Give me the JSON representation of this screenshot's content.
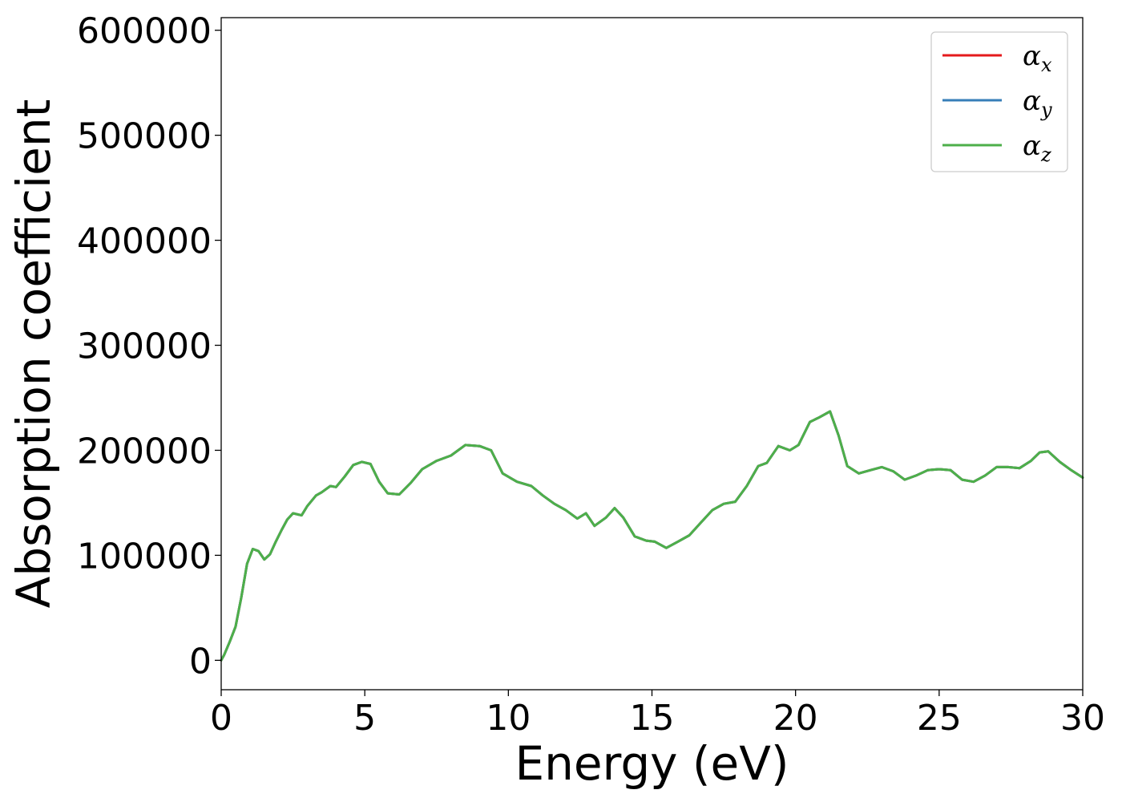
{
  "chart_data": {
    "type": "line",
    "title": "",
    "xlabel": "Energy (eV)",
    "ylabel": "Absorption coefficient",
    "xlim": [
      0,
      30
    ],
    "ylim": [
      -28000,
      612000
    ],
    "xticks": [
      0,
      5,
      10,
      15,
      20,
      25,
      30
    ],
    "yticks": [
      0,
      100000,
      200000,
      300000,
      400000,
      500000,
      600000
    ],
    "grid": false,
    "legend_position": "top-right",
    "series": [
      {
        "name": "α",
        "subscript": "x",
        "color": "#e41a1c",
        "x": [
          0,
          0.1,
          0.3,
          0.5,
          0.7,
          0.9,
          1.1,
          1.3,
          1.5,
          1.7,
          1.9,
          2.1,
          2.3,
          2.5,
          2.8,
          3.0,
          3.3,
          3.5,
          3.8,
          4.0,
          4.3,
          4.6,
          4.9,
          5.2,
          5.5,
          5.8,
          6.2,
          6.6,
          7.0,
          7.5,
          8.0,
          8.5,
          9.0,
          9.4,
          9.8,
          10.3,
          10.8,
          11.2,
          11.6,
          12.0,
          12.4,
          12.7,
          13.0,
          13.4,
          13.7,
          14.0,
          14.4,
          14.8,
          15.1,
          15.5,
          15.9,
          16.3,
          16.7,
          17.1,
          17.5,
          17.9,
          18.3,
          18.7,
          19.0,
          19.4,
          19.8,
          20.1,
          20.5,
          20.8,
          21.2,
          21.5,
          21.8,
          22.2,
          22.6,
          23.0,
          23.4,
          23.8,
          24.2,
          24.6,
          25.0,
          25.4,
          25.8,
          26.2,
          26.6,
          27.0,
          27.4,
          27.8,
          28.2,
          28.5,
          28.8,
          29.2,
          29.6,
          30.0
        ],
        "y": [
          0,
          5000,
          18000,
          32000,
          60000,
          92000,
          106000,
          104000,
          96000,
          101000,
          113000,
          124000,
          134000,
          140000,
          138000,
          147000,
          157000,
          160000,
          166000,
          165000,
          175000,
          186000,
          189000,
          187000,
          170000,
          159000,
          158000,
          169000,
          182000,
          190000,
          195000,
          205000,
          204000,
          200000,
          178000,
          170000,
          166000,
          157000,
          149000,
          143000,
          135000,
          140000,
          128000,
          136000,
          145000,
          136000,
          118000,
          114000,
          113000,
          107000,
          113000,
          119000,
          131000,
          143000,
          149000,
          151000,
          166000,
          185000,
          188000,
          204000,
          200000,
          205000,
          227000,
          231000,
          237000,
          214000,
          185000,
          178000,
          181000,
          184000,
          180000,
          172000,
          176000,
          181000,
          182000,
          181000,
          172000,
          170000,
          176000,
          184000,
          184000,
          183000,
          190000,
          198000,
          199000,
          189000,
          181000,
          174000
        ]
      },
      {
        "name": "α",
        "subscript": "y",
        "color": "#377eb8",
        "x": [
          0,
          0.1,
          0.3,
          0.5,
          0.7,
          0.9,
          1.1,
          1.3,
          1.5,
          1.7,
          1.9,
          2.1,
          2.3,
          2.5,
          2.8,
          3.0,
          3.3,
          3.5,
          3.8,
          4.0,
          4.3,
          4.6,
          4.9,
          5.2,
          5.5,
          5.8,
          6.2,
          6.6,
          7.0,
          7.5,
          8.0,
          8.5,
          9.0,
          9.4,
          9.8,
          10.3,
          10.8,
          11.2,
          11.6,
          12.0,
          12.4,
          12.7,
          13.0,
          13.4,
          13.7,
          14.0,
          14.4,
          14.8,
          15.1,
          15.5,
          15.9,
          16.3,
          16.7,
          17.1,
          17.5,
          17.9,
          18.3,
          18.7,
          19.0,
          19.4,
          19.8,
          20.1,
          20.5,
          20.8,
          21.2,
          21.5,
          21.8,
          22.2,
          22.6,
          23.0,
          23.4,
          23.8,
          24.2,
          24.6,
          25.0,
          25.4,
          25.8,
          26.2,
          26.6,
          27.0,
          27.4,
          27.8,
          28.2,
          28.5,
          28.8,
          29.2,
          29.6,
          30.0
        ],
        "y": [
          0,
          5000,
          18000,
          32000,
          60000,
          92000,
          106000,
          104000,
          96000,
          101000,
          113000,
          124000,
          134000,
          140000,
          138000,
          147000,
          157000,
          160000,
          166000,
          165000,
          175000,
          186000,
          189000,
          187000,
          170000,
          159000,
          158000,
          169000,
          182000,
          190000,
          195000,
          205000,
          204000,
          200000,
          178000,
          170000,
          166000,
          157000,
          149000,
          143000,
          135000,
          140000,
          128000,
          136000,
          145000,
          136000,
          118000,
          114000,
          113000,
          107000,
          113000,
          119000,
          131000,
          143000,
          149000,
          151000,
          166000,
          185000,
          188000,
          204000,
          200000,
          205000,
          227000,
          231000,
          237000,
          214000,
          185000,
          178000,
          181000,
          184000,
          180000,
          172000,
          176000,
          181000,
          182000,
          181000,
          172000,
          170000,
          176000,
          184000,
          184000,
          183000,
          190000,
          198000,
          199000,
          189000,
          181000,
          174000
        ]
      },
      {
        "name": "α",
        "subscript": "z",
        "color": "#4daf4a",
        "x": [
          0,
          0.1,
          0.3,
          0.5,
          0.7,
          0.9,
          1.1,
          1.3,
          1.5,
          1.7,
          1.9,
          2.1,
          2.3,
          2.5,
          2.8,
          3.0,
          3.3,
          3.5,
          3.8,
          4.0,
          4.3,
          4.6,
          4.9,
          5.2,
          5.5,
          5.8,
          6.2,
          6.6,
          7.0,
          7.5,
          8.0,
          8.5,
          9.0,
          9.4,
          9.8,
          10.3,
          10.8,
          11.2,
          11.6,
          12.0,
          12.4,
          12.7,
          13.0,
          13.4,
          13.7,
          14.0,
          14.4,
          14.8,
          15.1,
          15.5,
          15.9,
          16.3,
          16.7,
          17.1,
          17.5,
          17.9,
          18.3,
          18.7,
          19.0,
          19.4,
          19.8,
          20.1,
          20.5,
          20.8,
          21.2,
          21.5,
          21.8,
          22.2,
          22.6,
          23.0,
          23.4,
          23.8,
          24.2,
          24.6,
          25.0,
          25.4,
          25.8,
          26.2,
          26.6,
          27.0,
          27.4,
          27.8,
          28.2,
          28.5,
          28.8,
          29.2,
          29.6,
          30.0
        ],
        "y": [
          0,
          5000,
          18000,
          32000,
          60000,
          92000,
          106000,
          104000,
          96000,
          101000,
          113000,
          124000,
          134000,
          140000,
          138000,
          147000,
          157000,
          160000,
          166000,
          165000,
          175000,
          186000,
          189000,
          187000,
          170000,
          159000,
          158000,
          169000,
          182000,
          190000,
          195000,
          205000,
          204000,
          200000,
          178000,
          170000,
          166000,
          157000,
          149000,
          143000,
          135000,
          140000,
          128000,
          136000,
          145000,
          136000,
          118000,
          114000,
          113000,
          107000,
          113000,
          119000,
          131000,
          143000,
          149000,
          151000,
          166000,
          185000,
          188000,
          204000,
          200000,
          205000,
          227000,
          231000,
          237000,
          214000,
          185000,
          178000,
          181000,
          184000,
          180000,
          172000,
          176000,
          181000,
          182000,
          181000,
          172000,
          170000,
          176000,
          184000,
          184000,
          183000,
          190000,
          198000,
          199000,
          189000,
          181000,
          174000
        ]
      }
    ]
  }
}
